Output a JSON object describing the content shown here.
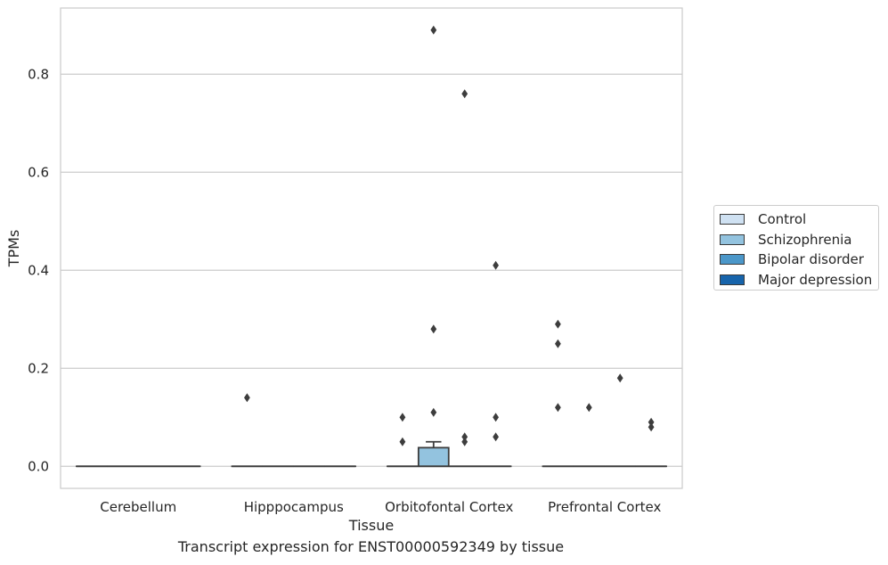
{
  "caption": "Transcript expression for ENST00000592349 by tissue",
  "chart_data": {
    "type": "box",
    "xlabel": "Tissue",
    "ylabel": "TPMs",
    "ylim": [
      -0.045,
      0.935
    ],
    "yticks": [
      0.0,
      0.2,
      0.4,
      0.6,
      0.8
    ],
    "ytick_labels": [
      "0.0",
      "0.2",
      "0.4",
      "0.6",
      "0.8"
    ],
    "grid": "horizontal",
    "legend_placement": "right",
    "categories": [
      "Cerebellum",
      "Hipppocampus",
      "Orbitofontal Cortex",
      "Prefrontal Cortex"
    ],
    "series": [
      {
        "name": "Control",
        "color": "#cfe1f2"
      },
      {
        "name": "Schizophrenia",
        "color": "#93c3df"
      },
      {
        "name": "Bipolar disorder",
        "color": "#4b97c9"
      },
      {
        "name": "Major depression",
        "color": "#1764ab"
      }
    ],
    "boxes": [
      {
        "category": 0,
        "series": 0,
        "q1": 0,
        "median": 0,
        "q3": 0,
        "whisker_low": 0,
        "whisker_high": 0,
        "outliers": []
      },
      {
        "category": 0,
        "series": 1,
        "q1": 0,
        "median": 0,
        "q3": 0,
        "whisker_low": 0,
        "whisker_high": 0,
        "outliers": []
      },
      {
        "category": 0,
        "series": 2,
        "q1": 0,
        "median": 0,
        "q3": 0,
        "whisker_low": 0,
        "whisker_high": 0,
        "outliers": []
      },
      {
        "category": 0,
        "series": 3,
        "q1": 0,
        "median": 0,
        "q3": 0,
        "whisker_low": 0,
        "whisker_high": 0,
        "outliers": []
      },
      {
        "category": 1,
        "series": 0,
        "q1": 0,
        "median": 0,
        "q3": 0,
        "whisker_low": 0,
        "whisker_high": 0,
        "outliers": [
          0.14
        ]
      },
      {
        "category": 1,
        "series": 1,
        "q1": 0,
        "median": 0,
        "q3": 0,
        "whisker_low": 0,
        "whisker_high": 0,
        "outliers": []
      },
      {
        "category": 1,
        "series": 2,
        "q1": 0,
        "median": 0,
        "q3": 0,
        "whisker_low": 0,
        "whisker_high": 0,
        "outliers": []
      },
      {
        "category": 1,
        "series": 3,
        "q1": 0,
        "median": 0,
        "q3": 0,
        "whisker_low": 0,
        "whisker_high": 0,
        "outliers": []
      },
      {
        "category": 2,
        "series": 0,
        "q1": 0,
        "median": 0,
        "q3": 0,
        "whisker_low": 0,
        "whisker_high": 0,
        "outliers": [
          0.1,
          0.05
        ]
      },
      {
        "category": 2,
        "series": 1,
        "q1": 0,
        "median": 0,
        "q3": 0.038,
        "whisker_low": 0,
        "whisker_high": 0.05,
        "outliers": [
          0.89,
          0.28,
          0.11
        ]
      },
      {
        "category": 2,
        "series": 2,
        "q1": 0,
        "median": 0,
        "q3": 0,
        "whisker_low": 0,
        "whisker_high": 0,
        "outliers": [
          0.76,
          0.06,
          0.05
        ]
      },
      {
        "category": 2,
        "series": 3,
        "q1": 0,
        "median": 0,
        "q3": 0,
        "whisker_low": 0,
        "whisker_high": 0,
        "outliers": [
          0.41,
          0.1,
          0.06
        ]
      },
      {
        "category": 3,
        "series": 0,
        "q1": 0,
        "median": 0,
        "q3": 0,
        "whisker_low": 0,
        "whisker_high": 0,
        "outliers": [
          0.29,
          0.25,
          0.12
        ]
      },
      {
        "category": 3,
        "series": 1,
        "q1": 0,
        "median": 0,
        "q3": 0,
        "whisker_low": 0,
        "whisker_high": 0,
        "outliers": [
          0.12
        ]
      },
      {
        "category": 3,
        "series": 2,
        "q1": 0,
        "median": 0,
        "q3": 0,
        "whisker_low": 0,
        "whisker_high": 0,
        "outliers": [
          0.18
        ]
      },
      {
        "category": 3,
        "series": 3,
        "q1": 0,
        "median": 0,
        "q3": 0,
        "whisker_low": 0,
        "whisker_high": 0,
        "outliers": [
          0.09,
          0.08
        ]
      }
    ]
  }
}
